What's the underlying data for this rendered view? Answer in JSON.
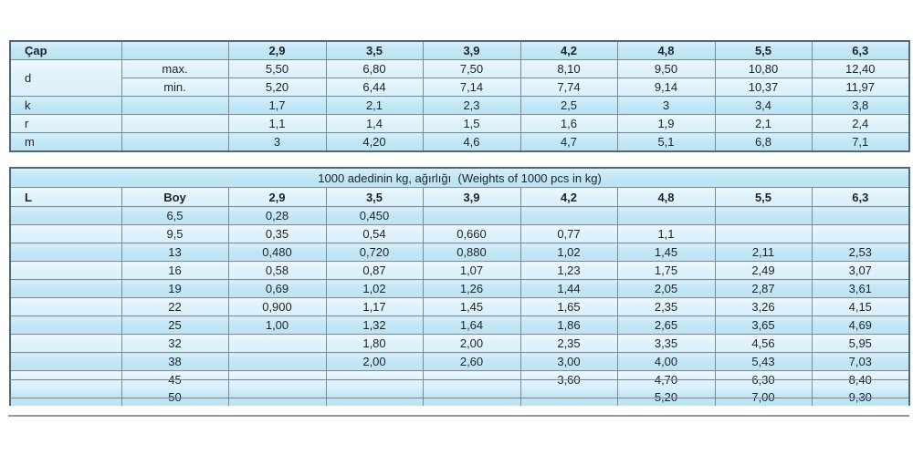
{
  "dimensions_table": {
    "corner_label": "Çap",
    "diameters": [
      "2,9",
      "3,5",
      "3,9",
      "4,2",
      "4,8",
      "5,5",
      "6,3"
    ],
    "rows": [
      {
        "label": "d",
        "sub": "max.",
        "values": [
          "5,50",
          "6,80",
          "7,50",
          "8,10",
          "9,50",
          "10,80",
          "12,40"
        ]
      },
      {
        "label": "d",
        "sub": "min.",
        "values": [
          "5,20",
          "6,44",
          "7,14",
          "7,74",
          "9,14",
          "10,37",
          "11,97"
        ]
      },
      {
        "label": "k",
        "sub": "",
        "values": [
          "1,7",
          "2,1",
          "2,3",
          "2,5",
          "3",
          "3,4",
          "3,8"
        ]
      },
      {
        "label": "r",
        "sub": "",
        "values": [
          "1,1",
          "1,4",
          "1,5",
          "1,6",
          "1,9",
          "2,1",
          "2,4"
        ]
      },
      {
        "label": "m",
        "sub": "",
        "values": [
          "3",
          "4,20",
          "4,6",
          "4,7",
          "5,1",
          "6,8",
          "7,1"
        ]
      }
    ]
  },
  "weights_table": {
    "title": "1000 adedinin kg, ağırlığı  (Weights of 1000 pcs in kg)",
    "col1_header": "L",
    "col2_header": "Boy",
    "diameters": [
      "2,9",
      "3,5",
      "3,9",
      "4,2",
      "4,8",
      "5,5",
      "6,3"
    ],
    "rows": [
      {
        "boy": "6,5",
        "values": [
          "0,28",
          "0,450",
          "",
          "",
          "",
          "",
          ""
        ]
      },
      {
        "boy": "9,5",
        "values": [
          "0,35",
          "0,54",
          "0,660",
          "0,77",
          "1,1",
          "",
          ""
        ]
      },
      {
        "boy": "13",
        "values": [
          "0,480",
          "0,720",
          "0,880",
          "1,02",
          "1,45",
          "2,11",
          "2,53"
        ]
      },
      {
        "boy": "16",
        "values": [
          "0,58",
          "0,87",
          "1,07",
          "1,23",
          "1,75",
          "2,49",
          "3,07"
        ]
      },
      {
        "boy": "19",
        "values": [
          "0,69",
          "1,02",
          "1,26",
          "1,44",
          "2,05",
          "2,87",
          "3,61"
        ]
      },
      {
        "boy": "22",
        "values": [
          "0,900",
          "1,17",
          "1,45",
          "1,65",
          "2,35",
          "3,26",
          "4,15"
        ]
      },
      {
        "boy": "25",
        "values": [
          "1,00",
          "1,32",
          "1,64",
          "1,86",
          "2,65",
          "3,65",
          "4,69"
        ]
      },
      {
        "boy": "32",
        "values": [
          "",
          "1,80",
          "2,00",
          "2,35",
          "3,35",
          "4,56",
          "5,95"
        ]
      },
      {
        "boy": "38",
        "values": [
          "",
          "2,00",
          "2,60",
          "3,00",
          "4,00",
          "5,43",
          "7,03"
        ]
      },
      {
        "boy": "45",
        "values": [
          "",
          "",
          "",
          "3,60",
          "4,70",
          "6,30",
          "8,40"
        ],
        "overlapped": true
      },
      {
        "boy": "50",
        "values": [
          "",
          "",
          "",
          "",
          "5,20",
          "7,00",
          "9,30"
        ],
        "overlapped": true
      }
    ]
  },
  "colors": {
    "row_dark": "#c2e6f5",
    "row_light": "#def2fb",
    "grid_border": "#7b8c96",
    "outer_border": "#566873",
    "strike_line": "#78898f",
    "displaced_border": "#8c9aa1",
    "text": "#1f2328",
    "page_background": "#ffffff"
  }
}
